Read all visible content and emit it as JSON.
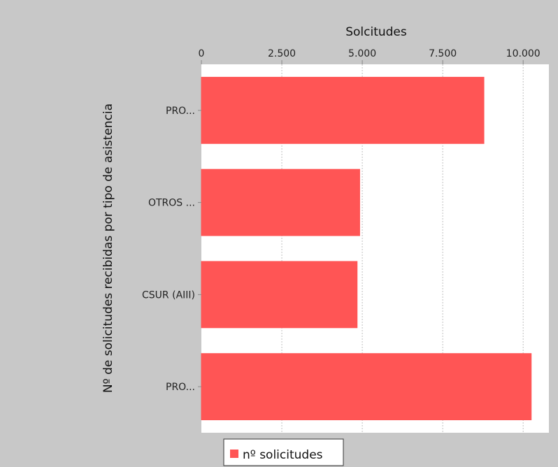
{
  "chart_data": {
    "type": "bar",
    "orientation": "horizontal",
    "categories": [
      "PRO...",
      "OTROS ...",
      "CSUR (AIII)",
      "PRO..."
    ],
    "series": [
      {
        "name": "nº solicitudes",
        "values": [
          8780,
          4920,
          4840,
          10250
        ]
      }
    ],
    "xlabel": "Solcitudes",
    "ylabel": "Nº de solicitudes recibidas por tipo de asistencia",
    "xlim": [
      0,
      10800
    ],
    "x_ticks": [
      0,
      2500,
      5000,
      7500,
      10000
    ],
    "x_tick_labels": [
      "0",
      "2.500",
      "5.000",
      "7.500",
      "10.000"
    ],
    "x_axis_position": "top",
    "grid": true,
    "legend": "bottom",
    "colors": {
      "bar": "#ff5555",
      "bar_edge": "#ff5555",
      "panel_background": "#c8c8c8",
      "plot_background": "#ffffff",
      "gridline": "#c0c0c0"
    }
  }
}
